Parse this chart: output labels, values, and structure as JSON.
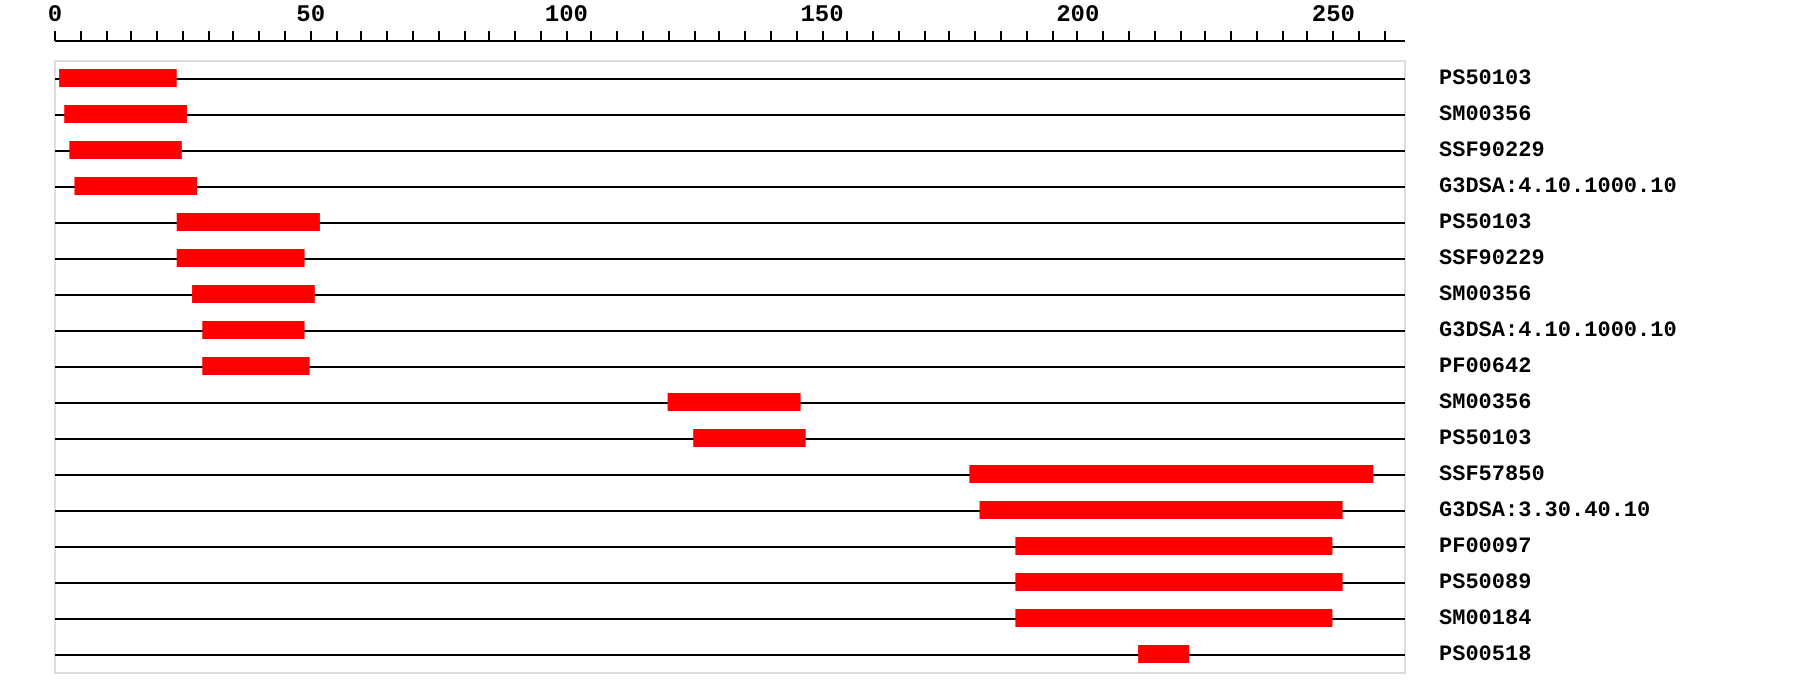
{
  "chart_data": {
    "type": "bar",
    "orientation": "horizontal",
    "categories": [
      "PS50103",
      "SM00356",
      "SSF90229",
      "G3DSA:4.10.1000.10",
      "PS50103",
      "SSF90229",
      "SM00356",
      "G3DSA:4.10.1000.10",
      "PF00642",
      "SM00356",
      "PS50103",
      "SSF57850",
      "G3DSA:3.30.40.10",
      "PF00097",
      "PS50089",
      "SM00184",
      "PS00518"
    ],
    "base": [
      1,
      2,
      3,
      4,
      24,
      24,
      27,
      29,
      29,
      120,
      125,
      179,
      181,
      188,
      188,
      188,
      212
    ],
    "values": [
      23,
      24,
      22,
      24,
      28,
      25,
      24,
      20,
      21,
      26,
      22,
      79,
      71,
      62,
      64,
      62,
      10
    ],
    "color": "#ff0000",
    "xlim": [
      0,
      264
    ],
    "xticks": [
      0,
      {
        "value": 5,
        "label": null
      },
      {
        "value": 10,
        "label": null
      },
      {
        "value": 15,
        "label": null
      },
      {
        "value": 20,
        "label": null
      },
      {
        "value": 25,
        "label": null
      },
      {
        "value": 30,
        "label": null
      },
      {
        "value": 35,
        "label": null
      },
      {
        "value": 40,
        "label": null
      },
      {
        "value": 45,
        "label": null
      },
      50,
      {
        "value": 55,
        "label": null
      },
      {
        "value": 60,
        "label": null
      },
      {
        "value": 65,
        "label": null
      },
      {
        "value": 70,
        "label": null
      },
      {
        "value": 75,
        "label": null
      },
      {
        "value": 80,
        "label": null
      },
      {
        "value": 85,
        "label": null
      },
      {
        "value": 90,
        "label": null
      },
      {
        "value": 95,
        "label": null
      },
      100,
      {
        "value": 105,
        "label": null
      },
      {
        "value": 110,
        "label": null
      },
      {
        "value": 115,
        "label": null
      },
      {
        "value": 120,
        "label": null
      },
      {
        "value": 125,
        "label": null
      },
      {
        "value": 130,
        "label": null
      },
      {
        "value": 135,
        "label": null
      },
      {
        "value": 140,
        "label": null
      },
      {
        "value": 145,
        "label": null
      },
      150,
      {
        "value": 155,
        "label": null
      },
      {
        "value": 160,
        "label": null
      },
      {
        "value": 165,
        "label": null
      },
      {
        "value": 170,
        "label": null
      },
      {
        "value": 175,
        "label": null
      },
      {
        "value": 180,
        "label": null
      },
      {
        "value": 185,
        "label": null
      },
      {
        "value": 190,
        "label": null
      },
      {
        "value": 195,
        "label": null
      },
      200,
      {
        "value": 205,
        "label": null
      },
      {
        "value": 210,
        "label": null
      },
      {
        "value": 215,
        "label": null
      },
      {
        "value": 220,
        "label": null
      },
      {
        "value": 225,
        "label": null
      },
      {
        "value": 230,
        "label": null
      },
      {
        "value": 235,
        "label": null
      },
      {
        "value": 240,
        "label": null
      },
      {
        "value": 245,
        "label": null
      },
      250,
      {
        "value": 255,
        "label": null
      },
      {
        "value": 260,
        "label": null
      }
    ],
    "grid": "y"
  }
}
